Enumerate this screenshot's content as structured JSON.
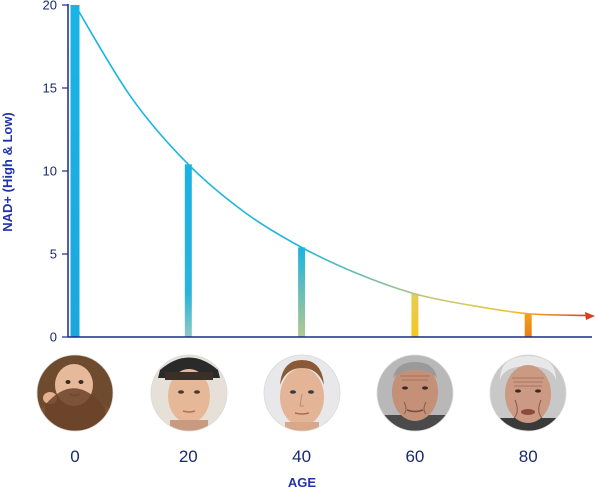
{
  "chart_data": {
    "type": "bar",
    "title": "",
    "xlabel": "AGE",
    "ylabel": "NAD+ (High & Low)",
    "x": [
      0,
      20,
      40,
      60,
      80
    ],
    "x_tick_labels": [
      "0",
      "20",
      "40",
      "60",
      "80"
    ],
    "values": [
      20,
      10.4,
      5.4,
      2.6,
      1.4
    ],
    "ylim": [
      0,
      20
    ],
    "y_ticks": [
      0,
      5,
      10,
      15,
      20
    ],
    "y_tick_labels": [
      "0",
      "5",
      "10",
      "15",
      "20"
    ],
    "grid": false,
    "legend": "none",
    "decay_curve": {
      "x": [
        0,
        10,
        20,
        30,
        40,
        50,
        60,
        70,
        80,
        90
      ],
      "y": [
        20,
        14.4,
        10.4,
        7.5,
        5.4,
        3.8,
        2.6,
        1.9,
        1.4,
        1.3
      ]
    },
    "portraits": [
      {
        "age": 0,
        "icon": "baby-face-icon"
      },
      {
        "age": 20,
        "icon": "young-man-face-icon"
      },
      {
        "age": 40,
        "icon": "adult-man-face-icon"
      },
      {
        "age": 60,
        "icon": "older-man-face-icon"
      },
      {
        "age": 80,
        "icon": "elderly-man-face-icon"
      }
    ],
    "colors": {
      "axis": "#1a2a8c",
      "curve_start": "#1ab0e0",
      "curve_end": "#e05a20",
      "bar_top": "#19b2e4",
      "bar_bottom_young": "#7fc4d8",
      "bar_mid": "#9cc7b0",
      "bar_old": "#f0c020",
      "bar_oldest": "#f08a1a"
    }
  }
}
